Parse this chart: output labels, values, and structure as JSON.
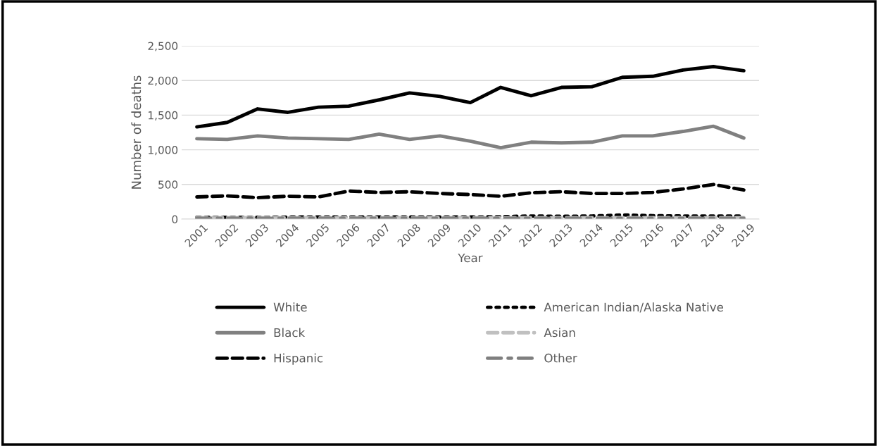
{
  "chart_data": {
    "type": "line",
    "xlabel": "Year",
    "ylabel": "Number of deaths",
    "categories": [
      "2001",
      "2002",
      "2003",
      "2004",
      "2005",
      "2006",
      "2007",
      "2008",
      "2009",
      "2010",
      "2011",
      "2012",
      "2013",
      "2014",
      "2015",
      "2016",
      "2017",
      "2018",
      "2019"
    ],
    "series": [
      {
        "name": "White",
        "color": "#000000",
        "line_style": "solid",
        "values": [
          1330,
          1395,
          1590,
          1540,
          1615,
          1630,
          1720,
          1820,
          1770,
          1680,
          1900,
          1780,
          1900,
          1910,
          2045,
          2060,
          2150,
          2200,
          2140
        ]
      },
      {
        "name": "Black",
        "color": "#808080",
        "line_style": "solid",
        "values": [
          1160,
          1150,
          1200,
          1170,
          1160,
          1150,
          1225,
          1150,
          1200,
          1125,
          1030,
          1110,
          1100,
          1110,
          1200,
          1200,
          1265,
          1340,
          1170
        ]
      },
      {
        "name": "Hispanic",
        "color": "#000000",
        "line_style": "dashed",
        "values": [
          320,
          335,
          310,
          330,
          320,
          405,
          385,
          395,
          370,
          355,
          330,
          380,
          395,
          370,
          370,
          385,
          435,
          500,
          420
        ]
      },
      {
        "name": "American Indian/Alaska Native",
        "color": "#000000",
        "line_style": "dotted",
        "values": [
          25,
          25,
          25,
          30,
          30,
          30,
          30,
          30,
          30,
          30,
          35,
          45,
          40,
          45,
          60,
          50,
          45,
          45,
          45
        ]
      },
      {
        "name": "Asian",
        "color": "#c0c0c0",
        "line_style": "dashed",
        "values": [
          20,
          20,
          20,
          20,
          20,
          20,
          20,
          20,
          20,
          20,
          20,
          20,
          20,
          20,
          20,
          20,
          20,
          20,
          20
        ]
      },
      {
        "name": "Other",
        "color": "#7f7f7f",
        "line_style": "dashdot",
        "values": [
          10,
          10,
          10,
          10,
          10,
          10,
          10,
          10,
          10,
          10,
          10,
          10,
          10,
          10,
          10,
          10,
          10,
          10,
          10
        ]
      }
    ],
    "ylim": [
      0,
      2500
    ],
    "yticks": [
      {
        "value": 0,
        "label": "0"
      },
      {
        "value": 500,
        "label": "500"
      },
      {
        "value": 1000,
        "label": "1,000"
      },
      {
        "value": 1500,
        "label": "1,500"
      },
      {
        "value": 2000,
        "label": "2,000"
      },
      {
        "value": 2500,
        "label": "2,500"
      }
    ],
    "grid": "y",
    "legend": "bottom",
    "marker": "none"
  }
}
